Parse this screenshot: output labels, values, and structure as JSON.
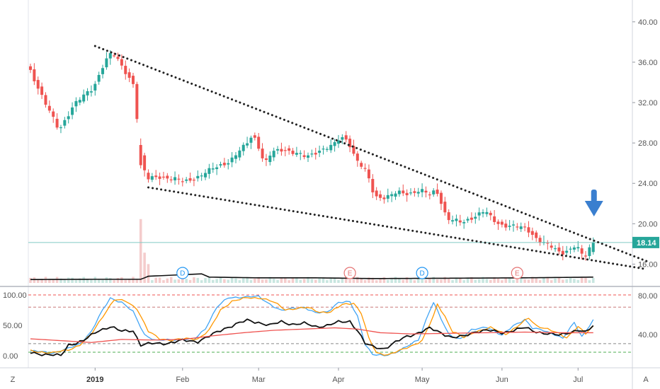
{
  "chart_data": [
    {
      "type": "candlestick",
      "price_axis": {
        "ticks": [
          "40.00",
          "36.00",
          "32.00",
          "28.00",
          "24.00",
          "20.00",
          "16.00"
        ],
        "range": [
          14.0,
          41.6
        ]
      },
      "time_axis": {
        "ticks": [
          {
            "label": "2019",
            "index": 17,
            "bold": true
          },
          {
            "label": "Feb",
            "index": 40
          },
          {
            "label": "Mar",
            "index": 60
          },
          {
            "label": "Apr",
            "index": 81
          },
          {
            "label": "May",
            "index": 103
          },
          {
            "label": "Jun",
            "index": 124
          },
          {
            "label": "Jul",
            "index": 144
          }
        ]
      },
      "last_price": {
        "label": "18.14",
        "value": 18.14,
        "color": "#26a69a"
      },
      "trendlines": [
        {
          "name": "upper-wedge-line",
          "from": [
            17,
            37.6
          ],
          "to": [
            162,
            16.3
          ]
        },
        {
          "name": "lower-wedge-line",
          "from": [
            31,
            23.6
          ],
          "to": [
            162,
            15.5
          ]
        }
      ],
      "annotation": {
        "icon": "down-arrow-icon",
        "index": 148,
        "color": "#3a7fcf"
      },
      "colors": {
        "up": "#26a69a",
        "down": "#ef5350",
        "trendline": "#222222",
        "volume_up": "#c8e6e0",
        "volume_down": "#f4cccc",
        "volume_ma": "#111111"
      },
      "events": [
        {
          "label": "D",
          "index": 40,
          "color": "#2196f3"
        },
        {
          "label": "E",
          "index": 84,
          "color": "#e57373"
        },
        {
          "label": "D",
          "index": 103,
          "color": "#2196f3"
        },
        {
          "label": "E",
          "index": 128,
          "color": "#e57373"
        }
      ],
      "legs": [
        [
          0,
          35.5
        ],
        [
          4,
          32.3
        ],
        [
          8,
          29.2
        ],
        [
          12,
          31.9
        ],
        [
          17,
          33.4
        ],
        [
          20,
          36.1
        ],
        [
          22,
          37.0
        ],
        [
          25,
          35.3
        ],
        [
          28,
          33.6
        ],
        [
          29,
          27.5
        ],
        [
          31,
          24.4
        ],
        [
          34,
          24.7
        ],
        [
          37,
          24.5
        ],
        [
          41,
          24.2
        ],
        [
          45,
          24.7
        ],
        [
          49,
          25.6
        ],
        [
          53,
          26.2
        ],
        [
          57,
          27.8
        ],
        [
          59,
          28.9
        ],
        [
          61,
          27.2
        ],
        [
          62,
          25.8
        ],
        [
          64,
          27.1
        ],
        [
          67,
          27.4
        ],
        [
          70,
          27.0
        ],
        [
          73,
          26.6
        ],
        [
          76,
          27.2
        ],
        [
          80,
          27.7
        ],
        [
          82,
          28.6
        ],
        [
          84,
          28.3
        ],
        [
          86,
          26.4
        ],
        [
          89,
          25.0
        ],
        [
          91,
          22.7
        ],
        [
          94,
          22.6
        ],
        [
          97,
          23.1
        ],
        [
          100,
          23.0
        ],
        [
          103,
          23.3
        ],
        [
          106,
          22.8
        ],
        [
          107,
          23.5
        ],
        [
          108,
          22.7
        ],
        [
          110,
          20.5
        ],
        [
          114,
          20.1
        ],
        [
          117,
          20.7
        ],
        [
          120,
          21.3
        ],
        [
          122,
          20.4
        ],
        [
          124,
          19.9
        ],
        [
          127,
          19.8
        ],
        [
          131,
          19.5
        ],
        [
          134,
          18.4
        ],
        [
          137,
          17.8
        ],
        [
          140,
          17.1
        ],
        [
          142,
          17.4
        ],
        [
          144,
          17.9
        ],
        [
          145,
          17.1
        ],
        [
          146,
          16.7
        ],
        [
          147,
          17.0
        ],
        [
          148,
          18.14
        ]
      ],
      "volume_legs": [
        [
          0,
          0.28
        ],
        [
          16,
          0.3
        ],
        [
          29,
          0.3
        ],
        [
          30,
          0.42
        ],
        [
          31,
          0.55
        ],
        [
          45,
          0.75
        ],
        [
          47,
          0.48
        ],
        [
          60,
          0.42
        ],
        [
          75,
          0.42
        ],
        [
          90,
          0.36
        ],
        [
          105,
          0.38
        ],
        [
          130,
          0.42
        ],
        [
          148,
          0.48
        ]
      ],
      "volume_spikes": [
        {
          "index": 29,
          "value": 0.95
        },
        {
          "index": 30,
          "value": 0.45
        },
        {
          "index": 31,
          "value": 0.28
        }
      ]
    },
    {
      "type": "line",
      "oscillator": true,
      "left_axis": {
        "ticks": [
          "100.00",
          "50.00",
          "0.00"
        ],
        "range": [
          -5,
          100
        ]
      },
      "right_axis": {
        "ticks": [
          "80.00",
          "40.00"
        ]
      },
      "levels": [
        {
          "name": "overbought-upper",
          "value": 100,
          "color": "#ef5350"
        },
        {
          "name": "overbought-lower",
          "value": 80,
          "color": "#c87878"
        },
        {
          "name": "oversold-upper",
          "value": 20,
          "color": "#888888"
        },
        {
          "name": "oversold-lower",
          "value": 6,
          "color": "#4caf50"
        }
      ],
      "series": [
        {
          "color": "#42a5f5",
          "legs": [
            [
              0,
              8
            ],
            [
              6,
              5
            ],
            [
              10,
              12
            ],
            [
              13,
              20
            ],
            [
              16,
              40
            ],
            [
              19,
              75
            ],
            [
              21,
              95
            ],
            [
              24,
              88
            ],
            [
              27,
              72
            ],
            [
              30,
              35
            ],
            [
              33,
              25
            ],
            [
              36,
              26
            ],
            [
              40,
              28
            ],
            [
              43,
              26
            ],
            [
              46,
              45
            ],
            [
              49,
              80
            ],
            [
              52,
              95
            ],
            [
              56,
              97
            ],
            [
              60,
              97
            ],
            [
              63,
              85
            ],
            [
              66,
              74
            ],
            [
              69,
              78
            ],
            [
              72,
              80
            ],
            [
              75,
              70
            ],
            [
              78,
              72
            ],
            [
              81,
              88
            ],
            [
              84,
              88
            ],
            [
              86,
              65
            ],
            [
              88,
              20
            ],
            [
              90,
              2
            ],
            [
              93,
              0
            ],
            [
              96,
              6
            ],
            [
              99,
              15
            ],
            [
              102,
              26
            ],
            [
              105,
              75
            ],
            [
              106,
              88
            ],
            [
              108,
              60
            ],
            [
              110,
              35
            ],
            [
              113,
              28
            ],
            [
              116,
              42
            ],
            [
              120,
              48
            ],
            [
              124,
              33
            ],
            [
              127,
              50
            ],
            [
              130,
              60
            ],
            [
              132,
              45
            ],
            [
              135,
              42
            ],
            [
              138,
              35
            ],
            [
              140,
              28
            ],
            [
              143,
              55
            ],
            [
              145,
              32
            ],
            [
              148,
              58
            ]
          ]
        },
        {
          "color": "#ff9800",
          "legs": [
            [
              0,
              8
            ],
            [
              6,
              5
            ],
            [
              10,
              10
            ],
            [
              13,
              18
            ],
            [
              16,
              35
            ],
            [
              19,
              65
            ],
            [
              22,
              92
            ],
            [
              25,
              90
            ],
            [
              28,
              78
            ],
            [
              31,
              40
            ],
            [
              34,
              28
            ],
            [
              37,
              26
            ],
            [
              41,
              28
            ],
            [
              44,
              28
            ],
            [
              47,
              42
            ],
            [
              50,
              75
            ],
            [
              53,
              90
            ],
            [
              57,
              95
            ],
            [
              61,
              95
            ],
            [
              64,
              88
            ],
            [
              67,
              76
            ],
            [
              70,
              78
            ],
            [
              73,
              79
            ],
            [
              76,
              72
            ],
            [
              79,
              72
            ],
            [
              82,
              84
            ],
            [
              85,
              87
            ],
            [
              87,
              70
            ],
            [
              89,
              28
            ],
            [
              91,
              5
            ],
            [
              94,
              2
            ],
            [
              97,
              8
            ],
            [
              100,
              16
            ],
            [
              103,
              25
            ],
            [
              106,
              65
            ],
            [
              107,
              85
            ],
            [
              109,
              65
            ],
            [
              111,
              40
            ],
            [
              114,
              30
            ],
            [
              117,
              40
            ],
            [
              121,
              46
            ],
            [
              125,
              36
            ],
            [
              128,
              48
            ],
            [
              131,
              62
            ],
            [
              133,
              50
            ],
            [
              136,
              44
            ],
            [
              139,
              36
            ],
            [
              141,
              30
            ],
            [
              144,
              48
            ],
            [
              146,
              36
            ],
            [
              148,
              48
            ]
          ]
        },
        {
          "color": "#111111",
          "legs": [
            [
              0,
              5
            ],
            [
              5,
              2
            ],
            [
              8,
              0
            ],
            [
              10,
              18
            ],
            [
              14,
              25
            ],
            [
              18,
              42
            ],
            [
              21,
              48
            ],
            [
              24,
              40
            ],
            [
              27,
              42
            ],
            [
              29,
              18
            ],
            [
              32,
              20
            ],
            [
              36,
              21
            ],
            [
              40,
              25
            ],
            [
              44,
              24
            ],
            [
              47,
              32
            ],
            [
              51,
              45
            ],
            [
              54,
              52
            ],
            [
              57,
              58
            ],
            [
              60,
              55
            ],
            [
              63,
              50
            ],
            [
              66,
              56
            ],
            [
              69,
              52
            ],
            [
              72,
              53
            ],
            [
              75,
              48
            ],
            [
              78,
              50
            ],
            [
              81,
              55
            ],
            [
              84,
              57
            ],
            [
              86,
              42
            ],
            [
              88,
              20
            ],
            [
              90,
              15
            ],
            [
              93,
              12
            ],
            [
              96,
              22
            ],
            [
              99,
              32
            ],
            [
              102,
              38
            ],
            [
              105,
              45
            ],
            [
              108,
              38
            ],
            [
              111,
              30
            ],
            [
              114,
              32
            ],
            [
              117,
              40
            ],
            [
              120,
              42
            ],
            [
              124,
              38
            ],
            [
              127,
              42
            ],
            [
              130,
              46
            ],
            [
              133,
              40
            ],
            [
              136,
              36
            ],
            [
              139,
              34
            ],
            [
              141,
              38
            ],
            [
              144,
              42
            ],
            [
              146,
              38
            ],
            [
              148,
              50
            ]
          ]
        },
        {
          "color": "#ef5350",
          "legs": [
            [
              0,
              28
            ],
            [
              8,
              25
            ],
            [
              16,
              22
            ],
            [
              24,
              27
            ],
            [
              32,
              26
            ],
            [
              40,
              27
            ],
            [
              48,
              33
            ],
            [
              56,
              38
            ],
            [
              64,
              42
            ],
            [
              72,
              44
            ],
            [
              80,
              46
            ],
            [
              86,
              44
            ],
            [
              92,
              38
            ],
            [
              100,
              36
            ],
            [
              110,
              37
            ],
            [
              120,
              38
            ],
            [
              130,
              39
            ],
            [
              140,
              38
            ],
            [
              148,
              38
            ]
          ]
        }
      ]
    }
  ],
  "controls": {
    "timezone_button": "Z",
    "autoscale_button": "A"
  }
}
